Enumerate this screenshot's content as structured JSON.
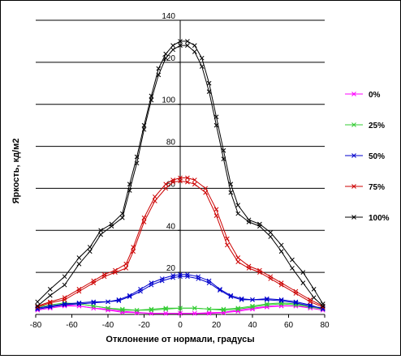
{
  "chart_data": {
    "type": "line",
    "title": "",
    "xlabel": "Отклонение от нормали, градусы",
    "ylabel": "Яркость, кд/м2",
    "xlim": [
      -80,
      80
    ],
    "ylim": [
      0,
      140
    ],
    "x_ticks": [
      -80,
      -60,
      -40,
      -20,
      0,
      20,
      40,
      60,
      80
    ],
    "y_ticks": [
      20,
      40,
      60,
      80,
      100,
      120,
      140
    ],
    "grid": "horizontal",
    "legend_position": "right",
    "series": [
      {
        "name": "0%",
        "color": "#ff00ff",
        "curves": [
          [
            [
              -79,
              2
            ],
            [
              -72,
              3
            ],
            [
              -64,
              4
            ],
            [
              -56,
              4
            ],
            [
              -48,
              3
            ],
            [
              -40,
              2.5
            ],
            [
              -32,
              1.5
            ],
            [
              -24,
              1
            ],
            [
              -16,
              0.5
            ],
            [
              -8,
              0.5
            ],
            [
              0,
              0.5
            ],
            [
              8,
              0.5
            ],
            [
              16,
              0.5
            ],
            [
              24,
              0.8
            ],
            [
              32,
              1.5
            ],
            [
              40,
              2.5
            ],
            [
              48,
              3.5
            ],
            [
              56,
              4
            ],
            [
              64,
              4
            ],
            [
              72,
              3.5
            ],
            [
              79,
              3
            ]
          ],
          [
            [
              -79,
              2.5
            ],
            [
              -72,
              3.5
            ],
            [
              -64,
              4.5
            ],
            [
              -56,
              4
            ],
            [
              -48,
              3
            ],
            [
              -40,
              2
            ],
            [
              -32,
              1
            ],
            [
              -24,
              0.8
            ],
            [
              -16,
              0.5
            ],
            [
              -8,
              0.5
            ],
            [
              0,
              0.5
            ],
            [
              8,
              0.5
            ],
            [
              16,
              0.8
            ],
            [
              24,
              1
            ],
            [
              32,
              2
            ],
            [
              40,
              3
            ],
            [
              48,
              3.8
            ],
            [
              56,
              4.2
            ],
            [
              64,
              4
            ],
            [
              72,
              3
            ],
            [
              79,
              2
            ]
          ]
        ]
      },
      {
        "name": "25%",
        "color": "#33cc33",
        "curves": [
          [
            [
              -79,
              3
            ],
            [
              -72,
              4
            ],
            [
              -64,
              5
            ],
            [
              -56,
              5
            ],
            [
              -48,
              4
            ],
            [
              -40,
              3
            ],
            [
              -32,
              2
            ],
            [
              -24,
              2
            ],
            [
              -16,
              2
            ],
            [
              -8,
              2.5
            ],
            [
              0,
              3
            ],
            [
              8,
              3
            ],
            [
              16,
              2.5
            ],
            [
              24,
              2
            ],
            [
              32,
              2.5
            ],
            [
              40,
              3.5
            ],
            [
              48,
              4.5
            ],
            [
              56,
              5
            ],
            [
              64,
              4.5
            ],
            [
              72,
              3.5
            ],
            [
              79,
              2.5
            ]
          ],
          [
            [
              -79,
              3.5
            ],
            [
              -72,
              4.5
            ],
            [
              -64,
              5.5
            ],
            [
              -56,
              5
            ],
            [
              -48,
              4
            ],
            [
              -40,
              3
            ],
            [
              -32,
              2.5
            ],
            [
              -24,
              2
            ],
            [
              -16,
              2.5
            ],
            [
              -8,
              3
            ],
            [
              0,
              3
            ],
            [
              8,
              3
            ],
            [
              16,
              2.5
            ],
            [
              24,
              2.5
            ],
            [
              32,
              3
            ],
            [
              40,
              4
            ],
            [
              48,
              5
            ],
            [
              56,
              5.5
            ],
            [
              64,
              5
            ],
            [
              72,
              4
            ],
            [
              79,
              3
            ]
          ]
        ]
      },
      {
        "name": "50%",
        "color": "#0000cc",
        "curves": [
          [
            [
              -79,
              3
            ],
            [
              -72,
              4
            ],
            [
              -64,
              5
            ],
            [
              -56,
              5.5
            ],
            [
              -48,
              6
            ],
            [
              -40,
              6
            ],
            [
              -34,
              7
            ],
            [
              -28,
              9
            ],
            [
              -22,
              12
            ],
            [
              -16,
              15
            ],
            [
              -10,
              17
            ],
            [
              -4,
              18.5
            ],
            [
              0,
              19
            ],
            [
              4,
              19
            ],
            [
              10,
              18
            ],
            [
              16,
              16
            ],
            [
              22,
              12
            ],
            [
              28,
              9
            ],
            [
              34,
              7.5
            ],
            [
              40,
              7
            ],
            [
              48,
              7
            ],
            [
              56,
              6.5
            ],
            [
              64,
              5.5
            ],
            [
              72,
              4
            ],
            [
              79,
              3
            ]
          ],
          [
            [
              -79,
              2.5
            ],
            [
              -72,
              3.5
            ],
            [
              -64,
              4.5
            ],
            [
              -56,
              5
            ],
            [
              -48,
              5.5
            ],
            [
              -40,
              6
            ],
            [
              -34,
              6.5
            ],
            [
              -28,
              8.5
            ],
            [
              -22,
              11
            ],
            [
              -16,
              14
            ],
            [
              -10,
              16
            ],
            [
              -4,
              17.5
            ],
            [
              0,
              18
            ],
            [
              4,
              18
            ],
            [
              10,
              17
            ],
            [
              16,
              15
            ],
            [
              22,
              11.5
            ],
            [
              28,
              8.5
            ],
            [
              34,
              7
            ],
            [
              40,
              7
            ],
            [
              48,
              7.5
            ],
            [
              56,
              7
            ],
            [
              64,
              6
            ],
            [
              72,
              4.5
            ],
            [
              79,
              2.5
            ]
          ]
        ]
      },
      {
        "name": "75%",
        "color": "#cc0000",
        "curves": [
          [
            [
              -79,
              4
            ],
            [
              -72,
              6
            ],
            [
              -64,
              8
            ],
            [
              -56,
              12
            ],
            [
              -48,
              16
            ],
            [
              -42,
              19
            ],
            [
              -36,
              21
            ],
            [
              -30,
              24
            ],
            [
              -26,
              32
            ],
            [
              -20,
              46
            ],
            [
              -14,
              56
            ],
            [
              -8,
              62
            ],
            [
              -4,
              64
            ],
            [
              0,
              65
            ],
            [
              4,
              65
            ],
            [
              8,
              64
            ],
            [
              14,
              60
            ],
            [
              20,
              50
            ],
            [
              26,
              36
            ],
            [
              32,
              27
            ],
            [
              38,
              23
            ],
            [
              44,
              21
            ],
            [
              50,
              18
            ],
            [
              56,
              15
            ],
            [
              64,
              11
            ],
            [
              72,
              7
            ],
            [
              79,
              4
            ]
          ],
          [
            [
              -79,
              3.5
            ],
            [
              -72,
              5.5
            ],
            [
              -64,
              7
            ],
            [
              -56,
              11
            ],
            [
              -48,
              15
            ],
            [
              -42,
              18
            ],
            [
              -36,
              20
            ],
            [
              -30,
              22
            ],
            [
              -26,
              30
            ],
            [
              -20,
              44
            ],
            [
              -14,
              54
            ],
            [
              -8,
              60
            ],
            [
              -4,
              63
            ],
            [
              0,
              63.5
            ],
            [
              4,
              63
            ],
            [
              8,
              62
            ],
            [
              14,
              58
            ],
            [
              20,
              47
            ],
            [
              26,
              33
            ],
            [
              32,
              25
            ],
            [
              38,
              22
            ],
            [
              44,
              20
            ],
            [
              50,
              17
            ],
            [
              56,
              14
            ],
            [
              64,
              10
            ],
            [
              72,
              6
            ],
            [
              79,
              3.5
            ]
          ]
        ]
      },
      {
        "name": "100%",
        "color": "#000000",
        "curves": [
          [
            [
              -79,
              6
            ],
            [
              -72,
              12
            ],
            [
              -64,
              18
            ],
            [
              -56,
              27
            ],
            [
              -50,
              32
            ],
            [
              -44,
              40
            ],
            [
              -38,
              43
            ],
            [
              -32,
              48
            ],
            [
              -28,
              62
            ],
            [
              -24,
              75
            ],
            [
              -20,
              90
            ],
            [
              -16,
              104
            ],
            [
              -12,
              117
            ],
            [
              -8,
              124
            ],
            [
              -4,
              128
            ],
            [
              0,
              130
            ],
            [
              4,
              130
            ],
            [
              8,
              128
            ],
            [
              12,
              122
            ],
            [
              16,
              110
            ],
            [
              20,
              94
            ],
            [
              24,
              78
            ],
            [
              28,
              62
            ],
            [
              32,
              52
            ],
            [
              38,
              45
            ],
            [
              44,
              43
            ],
            [
              50,
              39
            ],
            [
              56,
              33
            ],
            [
              62,
              26
            ],
            [
              68,
              20
            ],
            [
              74,
              12
            ],
            [
              79,
              5
            ]
          ],
          [
            [
              -79,
              4
            ],
            [
              -72,
              9
            ],
            [
              -64,
              14
            ],
            [
              -56,
              24
            ],
            [
              -50,
              30
            ],
            [
              -44,
              38
            ],
            [
              -38,
              42
            ],
            [
              -32,
              46
            ],
            [
              -28,
              59
            ],
            [
              -24,
              72
            ],
            [
              -20,
              88
            ],
            [
              -16,
              102
            ],
            [
              -12,
              114
            ],
            [
              -8,
              122
            ],
            [
              -4,
              126
            ],
            [
              0,
              128
            ],
            [
              4,
              128
            ],
            [
              8,
              125
            ],
            [
              12,
              118
            ],
            [
              16,
              106
            ],
            [
              20,
              90
            ],
            [
              24,
              74
            ],
            [
              28,
              58
            ],
            [
              32,
              48
            ],
            [
              38,
              44
            ],
            [
              44,
              42
            ],
            [
              50,
              37
            ],
            [
              56,
              30
            ],
            [
              62,
              22
            ],
            [
              68,
              15
            ],
            [
              74,
              8
            ],
            [
              79,
              4
            ]
          ]
        ]
      }
    ]
  }
}
